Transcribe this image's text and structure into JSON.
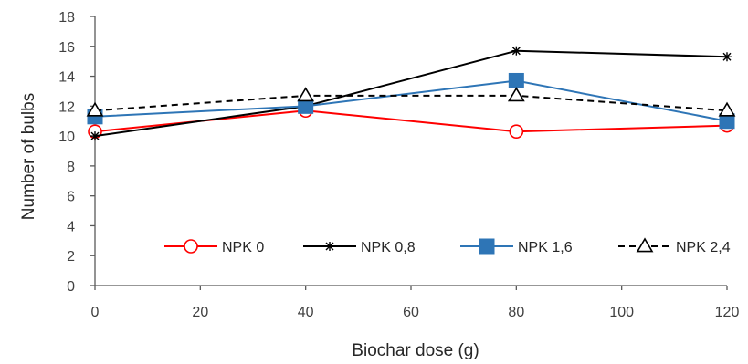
{
  "chart_data": {
    "type": "line",
    "title": "",
    "xlabel": "Biochar dose (g)",
    "ylabel": "Number of bulbs",
    "xlim": [
      0,
      120
    ],
    "ylim": [
      0,
      18
    ],
    "x_ticks": [
      0,
      20,
      40,
      60,
      80,
      100,
      120
    ],
    "y_ticks": [
      0,
      2,
      4,
      6,
      8,
      10,
      12,
      14,
      16,
      18
    ],
    "x_tick_labels": [
      "0",
      "20",
      "40",
      "60",
      "80",
      "100",
      "120"
    ],
    "y_tick_labels": [
      "0",
      "2",
      "4",
      "6",
      "8",
      "10",
      "12",
      "14",
      "16",
      "18"
    ],
    "grid": false,
    "legend_position": "bottom-inside",
    "x": [
      0,
      40,
      80,
      120
    ],
    "series": [
      {
        "name": "NPK 0",
        "values": [
          10.3,
          11.7,
          10.3,
          10.7
        ],
        "color": "#ff0000",
        "marker": "circle-open",
        "dash": "solid"
      },
      {
        "name": "NPK 0,8",
        "values": [
          10.0,
          12.0,
          15.7,
          15.3
        ],
        "color": "#000000",
        "marker": "asterisk",
        "dash": "solid"
      },
      {
        "name": "NPK 1,6",
        "values": [
          11.3,
          12.0,
          13.7,
          11.0
        ],
        "color": "#2e75b6",
        "marker": "square-filled",
        "dash": "solid"
      },
      {
        "name": "NPK 2,4",
        "values": [
          11.7,
          12.7,
          12.7,
          11.7
        ],
        "color": "#000000",
        "marker": "triangle-open",
        "dash": "dashed"
      }
    ]
  }
}
